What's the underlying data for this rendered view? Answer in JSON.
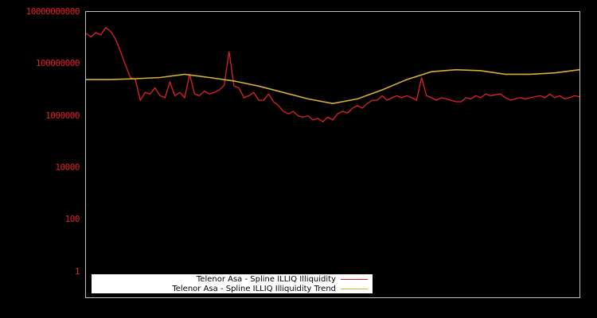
{
  "chart_data": {
    "type": "line",
    "title": "",
    "xlabel": "",
    "ylabel": "",
    "yscale": "log",
    "ylim": [
      0.3,
      30000000000
    ],
    "grid": false,
    "legend_position": "lower-left",
    "y_ticks": [
      "10000000000",
      "100000000",
      "1000000",
      "10000",
      "100",
      "1"
    ],
    "x_ticks": [],
    "x_range_fraction": [
      0,
      1
    ],
    "series": [
      {
        "name": "Telenor Asa - Spline ILLIQ Illiquidity",
        "color": "#e0202a",
        "x_fraction": [
          0.0,
          0.01,
          0.02,
          0.03,
          0.04,
          0.05,
          0.06,
          0.07,
          0.08,
          0.09,
          0.1,
          0.11,
          0.12,
          0.13,
          0.14,
          0.15,
          0.16,
          0.17,
          0.18,
          0.19,
          0.2,
          0.21,
          0.22,
          0.23,
          0.24,
          0.25,
          0.26,
          0.27,
          0.28,
          0.29,
          0.3,
          0.31,
          0.32,
          0.33,
          0.34,
          0.35,
          0.36,
          0.37,
          0.38,
          0.39,
          0.4,
          0.41,
          0.42,
          0.43,
          0.44,
          0.45,
          0.46,
          0.47,
          0.48,
          0.49,
          0.5,
          0.51,
          0.52,
          0.53,
          0.54,
          0.55,
          0.56,
          0.57,
          0.58,
          0.59,
          0.6,
          0.61,
          0.62,
          0.63,
          0.64,
          0.65,
          0.66,
          0.67,
          0.68,
          0.69,
          0.7,
          0.71,
          0.72,
          0.73,
          0.74,
          0.75,
          0.76,
          0.77,
          0.78,
          0.79,
          0.8,
          0.81,
          0.82,
          0.83,
          0.84,
          0.85,
          0.86,
          0.87,
          0.88,
          0.89,
          0.9,
          0.91,
          0.92,
          0.93,
          0.94,
          0.95,
          0.96,
          0.97,
          0.98,
          0.99,
          1.0
        ],
        "values": [
          1500000000,
          1100000000,
          1600000000,
          1300000000,
          2500000000,
          1800000000,
          900000000,
          300000000,
          90000000,
          30000000,
          25000000,
          4000000,
          8000000,
          7000000,
          12000000,
          6000000,
          5000000,
          20000000,
          6000000,
          8000000,
          5000000,
          40000000,
          7000000,
          6000000,
          9000000,
          7000000,
          8000000,
          10000000,
          15000000,
          300000000,
          14000000,
          12000000,
          5000000,
          6000000,
          8000000,
          4000000,
          4000000,
          7000000,
          3500000,
          2500000,
          1500000,
          1200000,
          1500000,
          1000000,
          900000,
          1000000,
          700000,
          800000,
          600000,
          900000,
          700000,
          1200000,
          1500000,
          1300000,
          2000000,
          2500000,
          2000000,
          3000000,
          4000000,
          4000000,
          6000000,
          4000000,
          5000000,
          6000000,
          5000000,
          6000000,
          5000000,
          4000000,
          30000000,
          6000000,
          5000000,
          4000000,
          5000000,
          4500000,
          4000000,
          3500000,
          3500000,
          5000000,
          4500000,
          6000000,
          5000000,
          7000000,
          6000000,
          6500000,
          7000000,
          5000000,
          4000000,
          4500000,
          5000000,
          4500000,
          5000000,
          5500000,
          6000000,
          5000000,
          7000000,
          5000000,
          6000000,
          4500000,
          5000000,
          6000000,
          5500000
        ]
      },
      {
        "name": "Telenor Asa - Spline ILLIQ Illiquidity Trend",
        "color": "#d4b034",
        "x_fraction": [
          0.0,
          0.05,
          0.1,
          0.15,
          0.2,
          0.25,
          0.3,
          0.35,
          0.4,
          0.45,
          0.5,
          0.55,
          0.6,
          0.65,
          0.7,
          0.75,
          0.8,
          0.85,
          0.9,
          0.95,
          1.0
        ],
        "values": [
          25000000,
          25000000,
          27000000,
          30000000,
          40000000,
          30000000,
          22000000,
          14000000,
          8000000,
          4500000,
          3000000,
          4500000,
          10000000,
          25000000,
          50000000,
          60000000,
          55000000,
          40000000,
          40000000,
          45000000,
          60000000
        ]
      }
    ]
  },
  "legend": {
    "items": [
      {
        "label": "Telenor Asa - Spline ILLIQ Illiquidity",
        "color": "#e0202a"
      },
      {
        "label": "Telenor Asa - Spline ILLIQ Illiquidity Trend",
        "color": "#d4b034"
      }
    ]
  },
  "colors": {
    "background": "#000000",
    "axis_frame": "#c0c0c0",
    "tick_label": "#e0202a"
  }
}
